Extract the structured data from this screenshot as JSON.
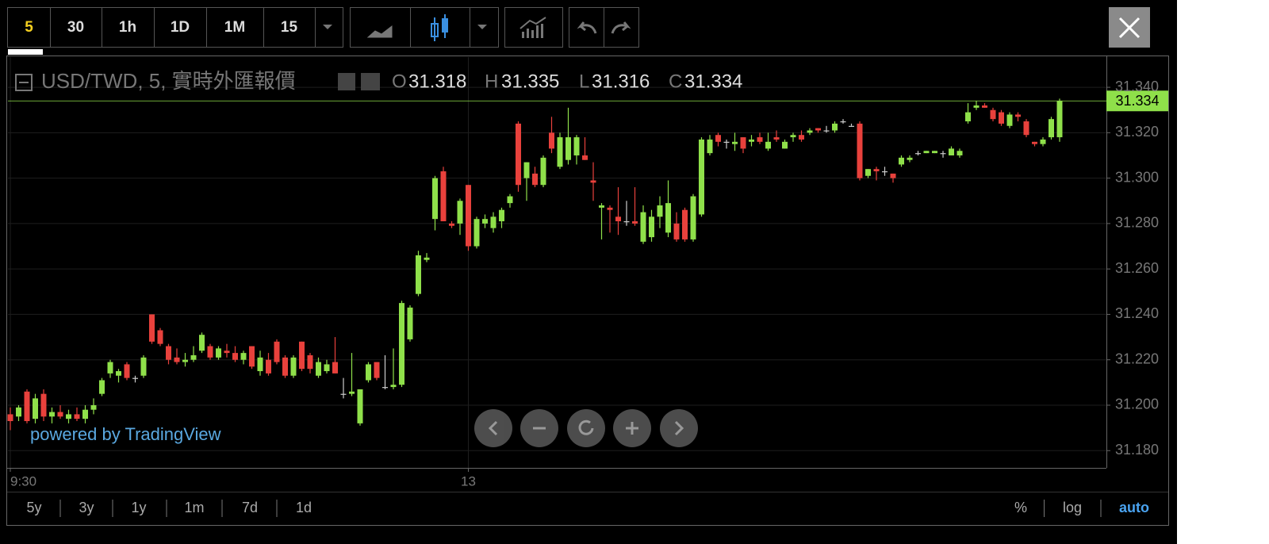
{
  "toolbar": {
    "intervals": [
      "5",
      "30",
      "1h",
      "1D",
      "1M",
      "15"
    ]
  },
  "chart_data": {
    "type": "candlestick",
    "title": "USD/TWD, 5, 實時外匯報價",
    "ohlc_labels": [
      "O",
      "H",
      "L",
      "C"
    ],
    "categories": [
      "9:30",
      null,
      null,
      null,
      null,
      null,
      null,
      null,
      null,
      null,
      null,
      null,
      null,
      null,
      null,
      null,
      null,
      null,
      null,
      null,
      null,
      null,
      null,
      null,
      null,
      null,
      null,
      null,
      null,
      null,
      null,
      null,
      null,
      null,
      null,
      null,
      null,
      null,
      null,
      null,
      null,
      null,
      null,
      null,
      null,
      null,
      null,
      null,
      null,
      null,
      null,
      null,
      null,
      null,
      null,
      "13",
      null,
      null,
      null,
      null,
      null,
      null,
      null,
      null,
      null,
      null,
      null,
      null,
      null,
      null,
      null,
      null,
      null,
      null,
      null,
      null,
      null,
      null,
      null,
      null,
      null,
      null,
      null,
      null,
      null,
      null,
      null,
      null,
      null,
      null,
      null,
      null,
      null,
      null,
      null,
      null,
      null,
      null,
      null,
      null,
      null,
      null,
      null,
      null,
      null,
      null,
      null,
      null,
      null,
      null,
      null,
      null,
      null,
      null,
      null,
      null,
      null,
      null,
      null,
      null,
      null,
      null,
      null,
      null,
      null,
      null,
      null
    ],
    "open": [
      31.196,
      31.195,
      31.206,
      31.194,
      31.205,
      31.195,
      31.197,
      31.194,
      31.196,
      31.194,
      31.198,
      31.205,
      31.214,
      31.213,
      31.218,
      31.212,
      31.213,
      31.24,
      31.233,
      31.226,
      31.221,
      31.219,
      31.22,
      31.224,
      31.226,
      31.221,
      31.224,
      31.223,
      31.22,
      31.226,
      31.215,
      31.22,
      31.228,
      31.221,
      31.213,
      31.228,
      31.222,
      31.213,
      31.215,
      31.219,
      31.205,
      31.205,
      31.192,
      31.211,
      31.219,
      31.208,
      31.208,
      31.209,
      31.229,
      31.249,
      31.264,
      31.282,
      31.303,
      31.28,
      31.28,
      31.297,
      31.27,
      31.28,
      31.278,
      31.281,
      31.289,
      31.324,
      31.3,
      31.302,
      31.297,
      31.32,
      31.305,
      31.308,
      31.31,
      31.31,
      31.299,
      31.287,
      31.287,
      31.283,
      31.281,
      31.281,
      31.272,
      31.274,
      31.283,
      31.276,
      31.28,
      31.286,
      31.273,
      31.284,
      31.311,
      31.319,
      31.316,
      31.315,
      31.318,
      31.316,
      31.318,
      31.313,
      31.318,
      31.313,
      31.318,
      31.319,
      31.32,
      31.322,
      31.321,
      31.321,
      31.325,
      31.323,
      31.324,
      31.301,
      31.304,
      31.303,
      31.302,
      31.306,
      31.308,
      31.311,
      31.311,
      31.311,
      31.311,
      31.31,
      31.31,
      31.325,
      31.331,
      31.332,
      31.33,
      31.329,
      31.323,
      31.328,
      31.325,
      31.316,
      31.315,
      31.318,
      31.318
    ],
    "high": [
      31.199,
      31.2,
      31.207,
      31.205,
      31.207,
      31.199,
      31.2,
      31.198,
      31.199,
      31.2,
      31.203,
      31.212,
      31.22,
      31.216,
      31.219,
      31.213,
      31.222,
      31.24,
      31.234,
      31.227,
      31.225,
      31.223,
      31.226,
      31.232,
      31.227,
      31.226,
      31.227,
      31.226,
      31.224,
      31.226,
      31.224,
      31.223,
      31.229,
      31.222,
      31.222,
      31.228,
      31.223,
      31.221,
      31.22,
      31.23,
      31.212,
      31.223,
      31.207,
      31.219,
      31.219,
      31.222,
      31.225,
      31.246,
      31.244,
      31.268,
      31.267,
      31.301,
      31.305,
      31.281,
      31.291,
      31.297,
      31.283,
      31.284,
      31.285,
      31.287,
      31.293,
      31.325,
      31.307,
      31.305,
      31.31,
      31.327,
      31.32,
      31.331,
      31.319,
      31.318,
      31.307,
      31.289,
      31.288,
      31.296,
      31.29,
      31.296,
      31.288,
      31.286,
      31.292,
      31.299,
      31.285,
      31.287,
      31.293,
      31.318,
      31.319,
      31.32,
      31.317,
      31.32,
      31.318,
      31.319,
      31.32,
      31.32,
      31.321,
      31.317,
      31.32,
      31.321,
      31.322,
      31.322,
      31.323,
      31.325,
      31.326,
      31.324,
      31.325,
      31.304,
      31.305,
      31.305,
      31.302,
      31.31,
      31.31,
      31.312,
      31.312,
      31.312,
      31.312,
      31.314,
      31.313,
      31.333,
      31.334,
      31.333,
      31.331,
      31.33,
      31.329,
      31.329,
      31.326,
      31.316,
      31.318,
      31.327,
      31.335
    ],
    "low": [
      31.189,
      31.193,
      31.192,
      31.192,
      31.193,
      31.192,
      31.194,
      31.192,
      31.193,
      31.192,
      31.196,
      31.204,
      31.212,
      31.21,
      31.211,
      31.21,
      31.212,
      31.227,
      31.226,
      31.218,
      31.218,
      31.217,
      31.219,
      31.223,
      31.22,
      31.22,
      31.221,
      31.219,
      31.218,
      31.216,
      31.213,
      31.213,
      31.218,
      31.212,
      31.212,
      31.215,
      31.214,
      31.212,
      31.214,
      31.214,
      31.203,
      31.204,
      31.191,
      31.21,
      31.211,
      31.207,
      31.207,
      31.208,
      31.228,
      31.248,
      31.263,
      31.277,
      31.281,
      31.278,
      31.275,
      31.268,
      31.269,
      31.278,
      31.276,
      31.278,
      31.287,
      31.294,
      31.29,
      31.296,
      31.296,
      31.311,
      31.304,
      31.306,
      31.306,
      31.308,
      31.29,
      31.273,
      31.276,
      31.275,
      31.279,
      31.279,
      31.271,
      31.272,
      31.278,
      31.274,
      31.272,
      31.272,
      31.272,
      31.283,
      31.31,
      31.314,
      31.313,
      31.312,
      31.311,
      31.314,
      31.315,
      31.312,
      31.316,
      31.313,
      31.316,
      31.316,
      31.319,
      31.32,
      31.32,
      31.32,
      31.324,
      31.323,
      31.299,
      31.3,
      31.299,
      31.301,
      31.298,
      31.305,
      31.307,
      31.31,
      31.311,
      31.311,
      31.309,
      31.31,
      31.309,
      31.324,
      31.33,
      31.331,
      31.325,
      31.323,
      31.322,
      31.325,
      31.318,
      31.314,
      31.314,
      31.317,
      31.316
    ],
    "close": [
      31.193,
      31.199,
      31.193,
      31.203,
      31.195,
      31.197,
      31.195,
      31.196,
      31.194,
      31.198,
      31.2,
      31.211,
      31.219,
      31.215,
      31.212,
      31.212,
      31.221,
      31.228,
      31.227,
      31.22,
      31.219,
      31.22,
      31.222,
      31.231,
      31.221,
      31.225,
      31.223,
      31.22,
      31.223,
      31.217,
      31.221,
      31.214,
      31.219,
      31.213,
      31.221,
      31.216,
      31.216,
      31.219,
      31.218,
      31.214,
      31.205,
      31.206,
      31.207,
      31.218,
      31.212,
      31.208,
      31.209,
      31.245,
      31.243,
      31.266,
      31.265,
      31.3,
      31.281,
      31.279,
      31.29,
      31.27,
      31.282,
      31.282,
      31.283,
      31.286,
      31.292,
      31.297,
      31.307,
      31.297,
      31.309,
      31.313,
      31.318,
      31.318,
      31.318,
      31.308,
      31.298,
      31.288,
      31.286,
      31.281,
      31.281,
      31.28,
      31.285,
      31.283,
      31.288,
      31.289,
      31.273,
      31.273,
      31.292,
      31.317,
      31.317,
      31.316,
      31.316,
      31.316,
      31.313,
      31.317,
      31.316,
      31.316,
      31.317,
      31.316,
      31.319,
      31.317,
      31.321,
      31.321,
      31.321,
      31.324,
      31.325,
      31.323,
      31.3,
      31.304,
      31.303,
      31.303,
      31.3,
      31.309,
      31.309,
      31.311,
      31.312,
      31.312,
      31.311,
      31.313,
      31.312,
      31.329,
      31.332,
      31.331,
      31.326,
      31.324,
      31.328,
      31.327,
      31.319,
      31.315,
      31.317,
      31.326,
      31.334
    ],
    "up_color": "#8fe04a",
    "down_color": "#e8413c",
    "ylim": [
      31.1724,
      31.3533
    ],
    "yticks": [
      {
        "value": 31.18,
        "label": "31.180"
      },
      {
        "value": 31.2,
        "label": "31.200"
      },
      {
        "value": 31.22,
        "label": "31.220"
      },
      {
        "value": 31.24,
        "label": "31.240"
      },
      {
        "value": 31.26,
        "label": "31.260"
      },
      {
        "value": 31.28,
        "label": "31.280"
      },
      {
        "value": 31.3,
        "label": "31.300"
      },
      {
        "value": 31.32,
        "label": "31.320"
      },
      {
        "value": 31.34,
        "label": "31.340"
      }
    ],
    "grid": true
  },
  "watermark": "powered by TradingView",
  "footer": {
    "ranges": [
      "5y",
      "3y",
      "1y",
      "1m",
      "7d",
      "1d"
    ],
    "options": [
      "%",
      "log",
      "auto"
    ]
  }
}
